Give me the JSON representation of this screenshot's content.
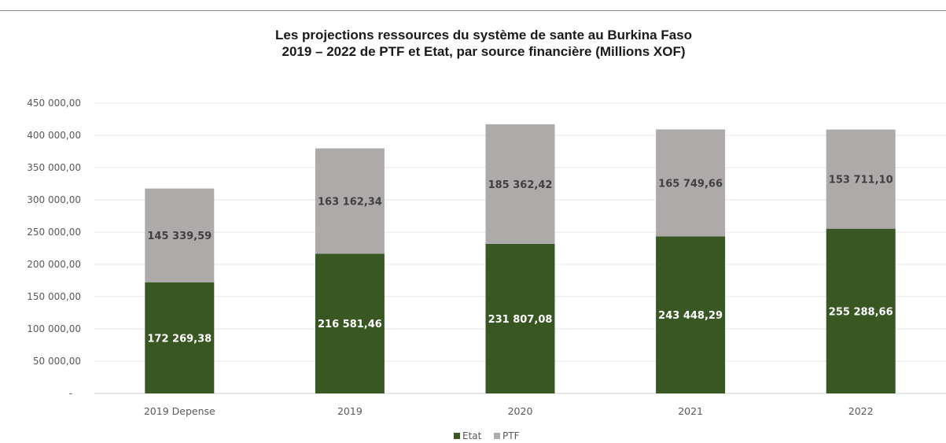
{
  "chart_data": {
    "type": "bar",
    "stacked": true,
    "title_line1": "Les projections ressources du système de sante au Burkina Faso",
    "title_line2": "2019 – 2022 de PTF et Etat, par source financière (Millions XOF)",
    "categories": [
      "2019 Depense",
      "2019",
      "2020",
      "2021",
      "2022"
    ],
    "series": [
      {
        "name": "Etat",
        "color": "#385723",
        "label_color": "#ffffff",
        "values": [
          172269.38,
          216581.46,
          231807.08,
          243448.29,
          255288.66
        ],
        "labels": [
          "172 269,38",
          "216 581,46",
          "231 807,08",
          "243 448,29",
          "255 288,66"
        ]
      },
      {
        "name": "PTF",
        "color": "#aeaaaa",
        "label_color": "#404040",
        "values": [
          145339.59,
          163162.34,
          185362.42,
          165749.66,
          153711.1
        ],
        "labels": [
          "145 339,59",
          "163 162,34",
          "185 362,42",
          "165 749,66",
          "153 711,10"
        ]
      }
    ],
    "ylim": [
      0,
      450000
    ],
    "yticks": [
      0,
      50000,
      100000,
      150000,
      200000,
      250000,
      300000,
      350000,
      400000,
      450000
    ],
    "ytick_labels": [
      "-",
      "50 000,00",
      "100 000,00",
      "150 000,00",
      "200 000,00",
      "250 000,00",
      "300 000,00",
      "350 000,00",
      "400 000,00",
      "450 000,00"
    ],
    "grid": true,
    "legend_position": "bottom"
  }
}
